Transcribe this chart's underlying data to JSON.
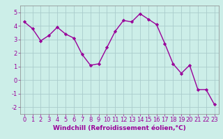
{
  "x": [
    0,
    1,
    2,
    3,
    4,
    5,
    6,
    7,
    8,
    9,
    10,
    11,
    12,
    13,
    14,
    15,
    16,
    17,
    18,
    19,
    20,
    21,
    22,
    23
  ],
  "y": [
    4.3,
    3.8,
    2.9,
    3.3,
    3.9,
    3.4,
    3.1,
    1.9,
    1.1,
    1.2,
    2.4,
    3.6,
    4.4,
    4.3,
    4.9,
    4.5,
    4.1,
    2.7,
    1.2,
    0.5,
    1.1,
    -0.7,
    -0.7,
    -1.8
  ],
  "line_color": "#990099",
  "marker": "D",
  "marker_size": 2.2,
  "bg_color": "#cceee8",
  "grid_color": "#aacccc",
  "xlabel": "Windchill (Refroidissement éolien,°C)",
  "xlabel_fontsize": 6.5,
  "xlim": [
    -0.5,
    23.5
  ],
  "ylim": [
    -2.5,
    5.5
  ],
  "yticks": [
    -2,
    -1,
    0,
    1,
    2,
    3,
    4,
    5
  ],
  "xticks": [
    0,
    1,
    2,
    3,
    4,
    5,
    6,
    7,
    8,
    9,
    10,
    11,
    12,
    13,
    14,
    15,
    16,
    17,
    18,
    19,
    20,
    21,
    22,
    23
  ],
  "tick_fontsize": 6.0,
  "line_width": 1.0,
  "spine_color": "#888888"
}
